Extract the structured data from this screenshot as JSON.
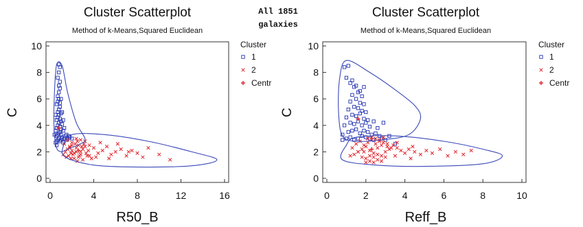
{
  "header_note": {
    "line1": "All 1851",
    "line2": "galaxies"
  },
  "colors": {
    "cluster1": "#1f2fb0",
    "cluster2": "#e0242a",
    "ellipse": "#3a48b8",
    "axis": "#333333"
  },
  "chart_data": [
    {
      "type": "scatter",
      "title": "Cluster Scatterplot",
      "subtitle": "Method of k-Means,Squared Euclidean",
      "xlabel": "R50_B",
      "ylabel": "C",
      "xlim": [
        0,
        16
      ],
      "ylim": [
        0,
        10
      ],
      "xticks": [
        "0",
        "4",
        "8",
        "12",
        "16"
      ],
      "xtick_values": [
        0,
        4,
        8,
        12,
        16
      ],
      "yticks": [
        "0",
        "2",
        "4",
        "6",
        "8",
        "10"
      ],
      "ytick_values": [
        0,
        2,
        4,
        6,
        8,
        10
      ],
      "grid": false,
      "legend_position": "right",
      "legend": {
        "title": "Cluster",
        "entries": [
          {
            "label": "1",
            "marker": "square",
            "color": "#1f2fb0"
          },
          {
            "label": "2",
            "marker": "x",
            "color": "#e0242a"
          },
          {
            "label": "Centr",
            "marker": "plus",
            "color": "#e0242a"
          }
        ]
      },
      "series": [
        {
          "name": "1",
          "marker": "square",
          "color": "#1f2fb0",
          "x": [
            0.5,
            0.6,
            0.7,
            0.8,
            0.9,
            1.0,
            1.1,
            1.2,
            0.6,
            0.7,
            0.8,
            0.9,
            1.0,
            1.1,
            1.3,
            1.4,
            0.5,
            0.6,
            0.7,
            0.8,
            0.9,
            1.0,
            1.2,
            1.5,
            0.6,
            0.7,
            0.8,
            0.9,
            1.0,
            1.1,
            1.3,
            0.7,
            0.8,
            0.9,
            1.0,
            1.2,
            0.6,
            0.7,
            0.8,
            0.9,
            1.1,
            0.7,
            0.8,
            0.9,
            1.0,
            0.8,
            0.9,
            0.7,
            0.8,
            0.9,
            0.8,
            1.6,
            1.8,
            1.5,
            1.7,
            2.0,
            0.4,
            0.5,
            0.6
          ],
          "y": [
            2.7,
            2.8,
            2.9,
            3.0,
            2.8,
            2.9,
            3.0,
            2.7,
            3.2,
            3.3,
            3.4,
            3.5,
            3.3,
            3.1,
            3.0,
            3.2,
            3.6,
            3.8,
            4.0,
            4.2,
            3.9,
            3.7,
            3.6,
            3.3,
            4.4,
            4.6,
            4.8,
            4.5,
            4.3,
            4.1,
            3.8,
            5.0,
            5.2,
            5.4,
            4.9,
            4.4,
            5.6,
            5.8,
            6.0,
            5.7,
            5.0,
            6.2,
            6.5,
            6.8,
            6.0,
            7.0,
            7.3,
            7.6,
            8.0,
            8.4,
            8.6,
            3.0,
            3.1,
            2.9,
            3.2,
            3.0,
            3.3,
            4.8,
            2.5
          ]
        },
        {
          "name": "2",
          "marker": "x",
          "color": "#e0242a",
          "x": [
            1.2,
            1.4,
            1.6,
            1.8,
            2.0,
            2.2,
            2.4,
            2.6,
            2.8,
            3.0,
            1.5,
            1.7,
            1.9,
            2.1,
            2.3,
            2.5,
            2.7,
            2.9,
            3.1,
            3.3,
            3.5,
            1.3,
            1.6,
            2.0,
            2.4,
            2.8,
            3.2,
            3.6,
            4.0,
            4.4,
            4.8,
            5.2,
            5.6,
            6.0,
            6.5,
            7.0,
            7.5,
            8.0,
            8.5,
            9.0,
            10.0,
            11.0,
            2.2,
            2.6,
            3.0,
            3.4,
            3.8,
            4.2,
            1.8,
            2.0,
            2.4,
            2.8,
            3.2,
            3.6,
            4.6,
            5.4,
            6.2,
            7.2,
            2.5,
            1.9
          ],
          "y": [
            1.8,
            2.0,
            2.2,
            2.4,
            2.1,
            1.9,
            2.3,
            2.5,
            2.0,
            2.2,
            1.6,
            1.7,
            1.9,
            1.8,
            2.6,
            2.8,
            1.7,
            2.4,
            2.6,
            1.9,
            2.1,
            2.6,
            2.9,
            2.7,
            3.0,
            2.9,
            2.8,
            2.5,
            2.3,
            1.9,
            2.1,
            2.4,
            1.8,
            2.0,
            2.2,
            1.7,
            2.1,
            1.9,
            1.6,
            2.3,
            1.8,
            1.4,
            1.5,
            1.6,
            1.4,
            1.7,
            1.5,
            1.6,
            2.3,
            2.5,
            2.0,
            1.8,
            2.4,
            1.7,
            2.7,
            1.5,
            2.6,
            2.0,
            1.3,
            1.5
          ]
        },
        {
          "name": "Centr",
          "marker": "plus",
          "color": "#e0242a",
          "x": [
            0.8,
            2.6
          ],
          "y": [
            3.8,
            2.1
          ]
        }
      ],
      "ellipses": [
        {
          "points": [
            [
              0.6,
              8.6
            ],
            [
              1.1,
              8.5
            ],
            [
              1.6,
              6.5
            ],
            [
              2.4,
              4.2
            ],
            [
              3.2,
              3.0
            ],
            [
              2.8,
              2.6
            ],
            [
              1.6,
              2.2
            ],
            [
              1.0,
              2.0
            ],
            [
              0.55,
              2.4
            ],
            [
              0.35,
              4.0
            ],
            [
              0.4,
              6.5
            ]
          ]
        },
        {
          "points": [
            [
              2.0,
              3.3
            ],
            [
              5.0,
              3.3
            ],
            [
              9.0,
              2.8
            ],
            [
              13.0,
              2.0
            ],
            [
              15.3,
              1.4
            ],
            [
              13.0,
              0.95
            ],
            [
              8.0,
              0.85
            ],
            [
              4.0,
              1.0
            ],
            [
              1.4,
              1.6
            ],
            [
              1.2,
              2.4
            ]
          ]
        }
      ]
    },
    {
      "type": "scatter",
      "title": "Cluster Scatterplot",
      "subtitle": "Method of k-Means,Squared Euclidean",
      "xlabel": "Reff_B",
      "ylabel": "C",
      "xlim": [
        0,
        10
      ],
      "ylim": [
        0,
        10
      ],
      "xticks": [
        "0",
        "2",
        "4",
        "6",
        "8",
        "10"
      ],
      "xtick_values": [
        0,
        2,
        4,
        6,
        8,
        10
      ],
      "yticks": [
        "0",
        "2",
        "4",
        "6",
        "8",
        "10"
      ],
      "ytick_values": [
        0,
        2,
        4,
        6,
        8,
        10
      ],
      "grid": false,
      "legend_position": "right",
      "legend": {
        "title": "Cluster",
        "entries": [
          {
            "label": "1",
            "marker": "square",
            "color": "#1f2fb0"
          },
          {
            "label": "2",
            "marker": "x",
            "color": "#e0242a"
          },
          {
            "label": "Centr",
            "marker": "plus",
            "color": "#e0242a"
          }
        ]
      },
      "series": [
        {
          "name": "1",
          "marker": "square",
          "color": "#1f2fb0",
          "x": [
            0.8,
            1.0,
            1.2,
            1.4,
            1.6,
            1.8,
            2.0,
            2.2,
            2.4,
            1.1,
            1.3,
            1.5,
            1.7,
            1.9,
            2.1,
            2.3,
            2.5,
            2.7,
            0.9,
            1.2,
            1.4,
            1.6,
            1.8,
            2.0,
            2.2,
            2.6,
            1.0,
            1.3,
            1.5,
            1.7,
            1.9,
            2.1,
            2.4,
            1.1,
            1.4,
            1.6,
            1.8,
            2.0,
            1.2,
            1.5,
            1.7,
            1.9,
            1.3,
            1.6,
            1.8,
            1.4,
            1.7,
            1.2,
            1.5,
            1.0,
            1.3,
            0.9,
            1.1,
            2.8,
            3.0,
            2.9,
            3.2,
            3.5,
            0.8,
            1.9
          ],
          "y": [
            2.9,
            3.0,
            3.1,
            2.9,
            3.0,
            3.2,
            3.1,
            3.0,
            2.9,
            3.5,
            3.6,
            3.7,
            3.4,
            3.6,
            3.5,
            3.3,
            3.4,
            3.2,
            4.0,
            4.2,
            4.1,
            4.3,
            4.0,
            4.2,
            3.9,
            3.8,
            4.6,
            4.8,
            4.7,
            4.9,
            4.5,
            4.4,
            4.3,
            5.2,
            5.4,
            5.3,
            5.1,
            5.0,
            5.8,
            6.0,
            5.7,
            5.6,
            6.3,
            6.5,
            6.2,
            6.9,
            6.6,
            7.2,
            7.0,
            7.6,
            7.4,
            8.4,
            8.5,
            3.0,
            2.9,
            4.2,
            3.2,
            2.6,
            3.3,
            6.9
          ]
        },
        {
          "name": "2",
          "marker": "x",
          "color": "#e0242a",
          "x": [
            1.4,
            1.6,
            1.8,
            2.0,
            2.2,
            2.4,
            2.6,
            2.8,
            3.0,
            3.2,
            1.5,
            1.7,
            1.9,
            2.1,
            2.3,
            2.5,
            2.7,
            2.9,
            3.1,
            3.3,
            1.8,
            2.0,
            2.2,
            2.4,
            2.6,
            2.8,
            3.4,
            3.6,
            3.8,
            4.0,
            4.2,
            4.5,
            4.8,
            5.1,
            5.4,
            5.8,
            6.2,
            6.6,
            7.0,
            7.4,
            1.2,
            1.3,
            2.1,
            2.3,
            2.5,
            2.7,
            2.9,
            3.1,
            3.5,
            4.3,
            2.0,
            2.2,
            2.4,
            2.6,
            1.9,
            3.0,
            3.6,
            4.4,
            1.6,
            2.8
          ],
          "y": [
            1.8,
            2.0,
            2.2,
            2.4,
            2.1,
            1.9,
            2.3,
            2.5,
            2.0,
            2.2,
            2.6,
            2.8,
            2.5,
            2.7,
            2.9,
            2.6,
            2.8,
            2.7,
            2.4,
            2.3,
            1.6,
            1.5,
            1.7,
            1.6,
            1.8,
            1.7,
            2.5,
            2.3,
            2.1,
            1.9,
            2.2,
            2.0,
            1.8,
            2.1,
            1.9,
            2.2,
            1.7,
            2.0,
            1.8,
            2.1,
            1.7,
            2.3,
            3.0,
            3.1,
            3.0,
            2.9,
            3.1,
            2.6,
            1.7,
            1.5,
            1.2,
            1.3,
            1.2,
            1.4,
            2.0,
            1.6,
            2.7,
            2.4,
            2.0,
            1.3
          ]
        },
        {
          "name": "Centr",
          "marker": "plus",
          "color": "#e0242a",
          "x": [
            1.6,
            2.3
          ],
          "y": [
            4.5,
            2.2
          ]
        }
      ],
      "ellipses": [
        {
          "points": [
            [
              1.0,
              8.9
            ],
            [
              2.2,
              8.0
            ],
            [
              3.4,
              6.8
            ],
            [
              4.5,
              5.5
            ],
            [
              4.8,
              4.5
            ],
            [
              4.2,
              3.3
            ],
            [
              2.8,
              2.9
            ],
            [
              1.5,
              2.8
            ],
            [
              0.8,
              3.2
            ],
            [
              0.6,
              5.0
            ],
            [
              0.65,
              7.5
            ]
          ]
        },
        {
          "points": [
            [
              1.5,
              3.1
            ],
            [
              3.5,
              3.2
            ],
            [
              6.0,
              2.8
            ],
            [
              8.0,
              2.2
            ],
            [
              9.0,
              1.7
            ],
            [
              8.0,
              1.1
            ],
            [
              5.0,
              0.9
            ],
            [
              2.5,
              1.0
            ],
            [
              0.8,
              1.4
            ],
            [
              1.0,
              2.5
            ]
          ]
        }
      ]
    }
  ]
}
